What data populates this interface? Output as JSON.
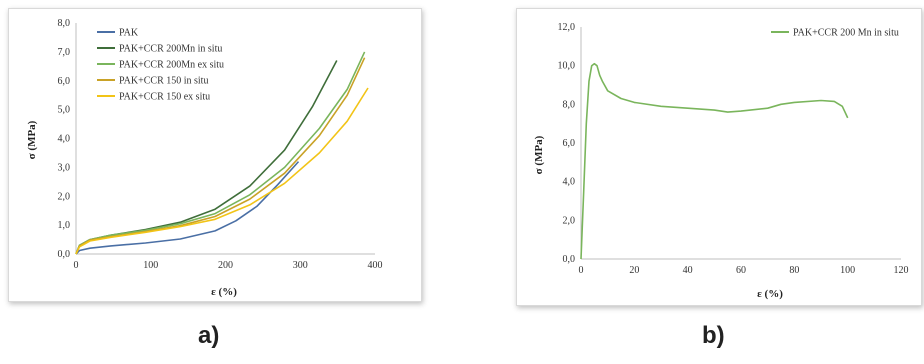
{
  "chart_data": [
    {
      "type": "line",
      "panel_label": "a)",
      "xlabel": "ε (%)",
      "ylabel": "σ (MPa)",
      "xlim": [
        0,
        430
      ],
      "ylim": [
        0,
        8
      ],
      "xticks": [
        "0",
        "100",
        "200",
        "300",
        "400"
      ],
      "yticks": [
        "0,0",
        "1,0",
        "2,0",
        "3,0",
        "4,0",
        "5,0",
        "6,0",
        "7,0",
        "8,0"
      ],
      "grid": false,
      "legend_position": "top-left",
      "series": [
        {
          "name": "PAK",
          "color": "#4a6fa5",
          "points": [
            [
              0,
              0
            ],
            [
              5,
              0.12
            ],
            [
              20,
              0.2
            ],
            [
              50,
              0.28
            ],
            [
              100,
              0.38
            ],
            [
              150,
              0.52
            ],
            [
              200,
              0.8
            ],
            [
              230,
              1.15
            ],
            [
              260,
              1.65
            ],
            [
              290,
              2.4
            ],
            [
              320,
              3.2
            ]
          ]
        },
        {
          "name": "PAK+CCR 200Mn in situ",
          "color": "#3f6e3a",
          "points": [
            [
              0,
              0
            ],
            [
              5,
              0.3
            ],
            [
              20,
              0.5
            ],
            [
              50,
              0.65
            ],
            [
              100,
              0.85
            ],
            [
              150,
              1.1
            ],
            [
              200,
              1.55
            ],
            [
              250,
              2.35
            ],
            [
              300,
              3.6
            ],
            [
              340,
              5.1
            ],
            [
              375,
              6.7
            ]
          ]
        },
        {
          "name": "PAK+CCR 200Mn ex situ",
          "color": "#7ab55c",
          "points": [
            [
              0,
              0
            ],
            [
              5,
              0.3
            ],
            [
              20,
              0.5
            ],
            [
              50,
              0.65
            ],
            [
              100,
              0.82
            ],
            [
              150,
              1.05
            ],
            [
              200,
              1.4
            ],
            [
              250,
              2.05
            ],
            [
              300,
              3.0
            ],
            [
              350,
              4.35
            ],
            [
              390,
              5.7
            ],
            [
              415,
              7.0
            ]
          ]
        },
        {
          "name": "PAK+CCR 150 in situ",
          "color": "#c9a227",
          "points": [
            [
              0,
              0
            ],
            [
              5,
              0.28
            ],
            [
              20,
              0.48
            ],
            [
              50,
              0.6
            ],
            [
              100,
              0.78
            ],
            [
              150,
              0.98
            ],
            [
              200,
              1.3
            ],
            [
              250,
              1.9
            ],
            [
              300,
              2.8
            ],
            [
              350,
              4.1
            ],
            [
              390,
              5.5
            ],
            [
              415,
              6.8
            ]
          ]
        },
        {
          "name": "PAK+CCR 150 ex situ",
          "color": "#f2c417",
          "points": [
            [
              0,
              0
            ],
            [
              5,
              0.25
            ],
            [
              20,
              0.45
            ],
            [
              50,
              0.58
            ],
            [
              100,
              0.75
            ],
            [
              150,
              0.95
            ],
            [
              200,
              1.2
            ],
            [
              250,
              1.7
            ],
            [
              300,
              2.45
            ],
            [
              350,
              3.5
            ],
            [
              390,
              4.6
            ],
            [
              420,
              5.75
            ]
          ]
        }
      ]
    },
    {
      "type": "line",
      "panel_label": "b)",
      "xlabel": "ε (%)",
      "ylabel": "σ (MPa)",
      "xlim": [
        0,
        120
      ],
      "ylim": [
        0,
        12
      ],
      "xticks": [
        "0",
        "20",
        "40",
        "60",
        "80",
        "100",
        "120"
      ],
      "yticks": [
        "0,0",
        "2,0",
        "4,0",
        "6,0",
        "8,0",
        "10,0",
        "12,0"
      ],
      "grid": false,
      "legend_position": "top-right",
      "series": [
        {
          "name": "PAK+CCR 200 Mn in situ",
          "color": "#7ab55c",
          "points": [
            [
              0,
              0
            ],
            [
              1,
              3.5
            ],
            [
              2,
              7
            ],
            [
              3,
              9.2
            ],
            [
              4,
              10
            ],
            [
              5,
              10.1
            ],
            [
              6,
              10
            ],
            [
              7,
              9.5
            ],
            [
              8,
              9.2
            ],
            [
              10,
              8.7
            ],
            [
              15,
              8.3
            ],
            [
              20,
              8.1
            ],
            [
              30,
              7.9
            ],
            [
              40,
              7.8
            ],
            [
              50,
              7.7
            ],
            [
              55,
              7.6
            ],
            [
              60,
              7.65
            ],
            [
              70,
              7.8
            ],
            [
              75,
              8.0
            ],
            [
              80,
              8.1
            ],
            [
              90,
              8.2
            ],
            [
              95,
              8.15
            ],
            [
              98,
              7.9
            ],
            [
              100,
              7.3
            ]
          ]
        }
      ]
    }
  ]
}
